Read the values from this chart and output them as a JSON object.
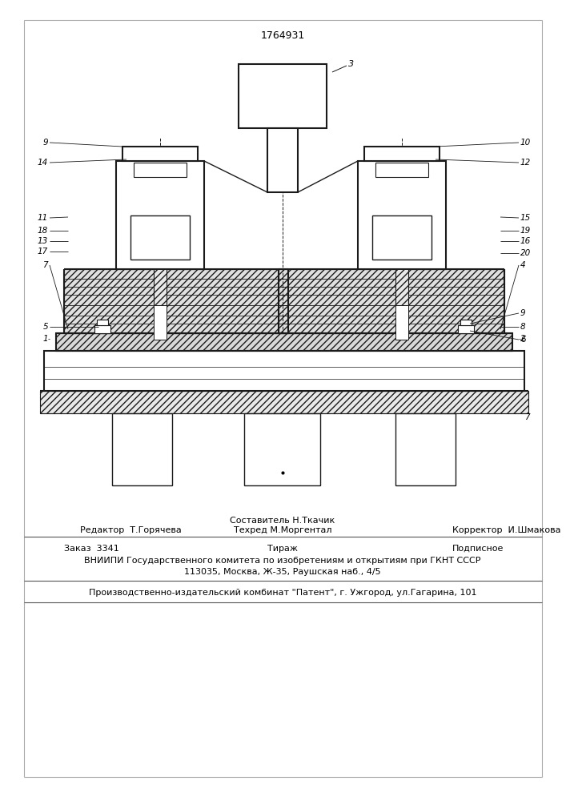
{
  "title": "1764931",
  "bg_color": "#ffffff",
  "line_color": "#1a1a1a",
  "footer_sostavitel": "Составитель Н.Ткачик",
  "footer_tehred": "Техред М.Моргентал",
  "footer_redaktor": "Редактор  Т.Горячева",
  "footer_korrektor": "Корректор  И.Шмакова",
  "footer_zakaz": "Заказ  3341",
  "footer_tirazh": "Тираж",
  "footer_podpisnoe": "Подписное",
  "footer_vniipbi": "ВНИИПИ Государственного комитета по изобретениям и открытиям при ГКНТ СССР",
  "footer_address": "113035, Москва, Ж-35, Раушская наб., 4/5",
  "footer_factory": "Производственно-издательский комбинат \"Патент\", г. Ужгород, ул.Гагарина, 101"
}
